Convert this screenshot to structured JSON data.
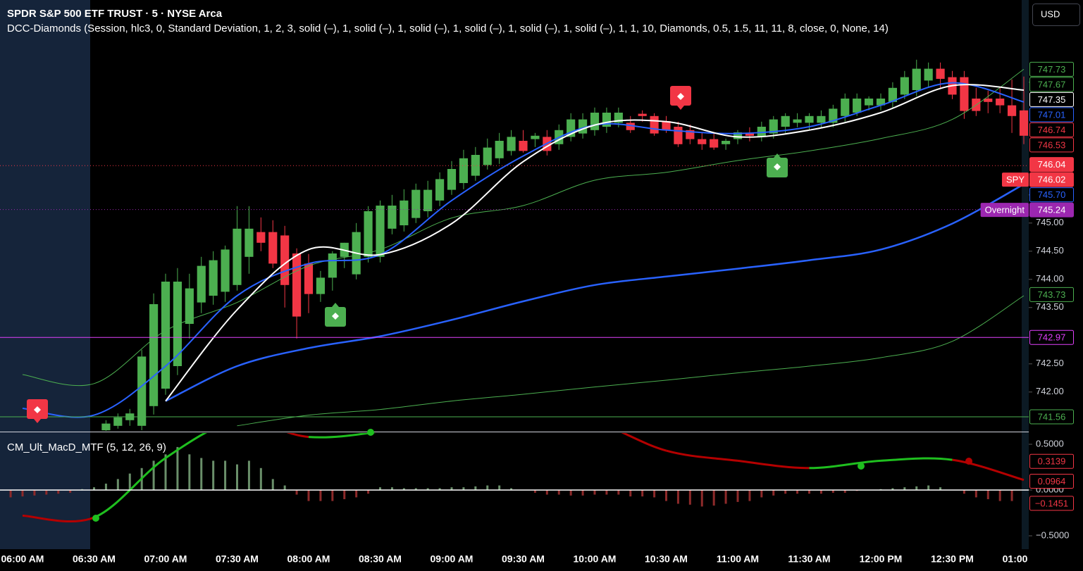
{
  "header": {
    "title": "SPDR S&P 500 ETF TRUST · 5 · NYSE Arca",
    "currency": "USD"
  },
  "chart_data": [
    {
      "type": "candlestick",
      "title": "DCC-Diamonds (Session, hlc3, 0, Standard Deviation, 1, 2, 3, solid (–), 1, solid (–), 1, solid (–), 1, solid (–), 1, solid (–), 1, solid (–), 1, 1, 10, Diamonds, 0.5, 1.5, 11, 11, 8, close, 0, None, 14)",
      "categories": [
        "06:00 AM",
        "06:30 AM",
        "07:00 AM",
        "07:30 AM",
        "08:00 AM",
        "08:30 AM",
        "09:00 AM",
        "09:30 AM",
        "10:00 AM",
        "10:30 AM",
        "11:00 AM",
        "11:30 AM",
        "12:00 PM",
        "12:30 PM",
        "01:00 PM"
      ],
      "open": [
        741.32,
        741.4,
        741.5,
        741.4,
        741.75,
        742.06,
        742.46,
        743.21,
        743.59,
        743.71,
        743.78,
        743.9,
        744.4,
        744.84,
        744.84,
        744.78,
        744.46,
        744.28,
        743.74,
        744.03,
        744.4,
        744.09,
        744.4,
        744.4,
        744.9,
        744.96,
        745.09,
        745.21,
        745.4,
        745.59,
        745.71,
        745.84,
        746.03,
        746.15,
        746.28,
        746.46,
        746.49,
        746.53,
        746.4,
        746.53,
        746.59,
        746.65,
        746.71,
        746.78,
        746.78,
        746.94,
        746.9,
        746.81,
        746.71,
        746.65,
        746.49,
        746.49,
        746.4,
        746.49,
        746.59,
        746.53,
        746.59,
        746.71,
        746.78,
        746.78,
        746.78,
        746.78,
        746.9,
        746.96,
        747.09,
        747.09,
        747.15,
        747.28,
        747.36,
        747.53,
        747.74,
        747.59,
        747.59,
        747.21,
        747.21,
        747.21,
        747.09,
        747.0
      ],
      "high": [
        741.5,
        741.62,
        741.7,
        742.75,
        743.75,
        744.1,
        744.2,
        744.1,
        744.4,
        744.5,
        744.6,
        745.3,
        745.3,
        745.1,
        745.05,
        744.95,
        744.55,
        744.45,
        744.15,
        744.5,
        744.65,
        745.0,
        745.3,
        745.4,
        745.5,
        745.6,
        745.7,
        745.75,
        745.9,
        746.1,
        746.3,
        746.35,
        746.5,
        746.6,
        746.65,
        746.65,
        746.6,
        746.65,
        746.75,
        746.95,
        746.95,
        747.05,
        747.05,
        747.05,
        746.9,
        747.0,
        746.95,
        746.9,
        746.8,
        746.75,
        746.6,
        746.6,
        746.5,
        746.65,
        746.7,
        746.8,
        746.9,
        746.95,
        746.95,
        746.95,
        747.0,
        747.1,
        747.3,
        747.3,
        747.25,
        747.3,
        747.5,
        747.7,
        747.9,
        747.85,
        747.85,
        747.7,
        747.7,
        747.4,
        747.35,
        747.4,
        747.55,
        747.6
      ],
      "low": [
        741.3,
        741.35,
        741.4,
        741.32,
        741.6,
        741.95,
        742.3,
        742.95,
        743.4,
        743.55,
        743.6,
        743.8,
        744.1,
        744.5,
        744.2,
        743.5,
        742.95,
        743.4,
        743.6,
        743.8,
        744.2,
        744.0,
        744.3,
        744.3,
        744.8,
        744.85,
        745.0,
        745.1,
        745.3,
        745.5,
        745.6,
        745.75,
        745.95,
        746.05,
        746.2,
        746.25,
        746.35,
        746.2,
        746.3,
        746.45,
        746.5,
        746.55,
        746.6,
        746.7,
        746.6,
        746.8,
        746.55,
        746.6,
        746.35,
        746.4,
        746.3,
        746.3,
        746.3,
        746.4,
        746.45,
        746.45,
        746.5,
        746.6,
        746.7,
        746.65,
        746.7,
        746.7,
        746.8,
        746.9,
        747.0,
        747.0,
        747.05,
        747.2,
        747.25,
        747.4,
        747.4,
        747.2,
        746.85,
        746.9,
        746.95,
        746.95,
        746.6,
        746.4
      ],
      "close": [
        741.44,
        741.55,
        741.62,
        742.63,
        743.56,
        743.96,
        743.96,
        743.84,
        744.24,
        744.34,
        744.53,
        744.9,
        744.9,
        744.65,
        744.28,
        743.9,
        743.34,
        743.74,
        744.03,
        744.46,
        744.65,
        744.84,
        745.21,
        745.31,
        745.31,
        745.4,
        745.59,
        745.59,
        745.78,
        745.96,
        746.15,
        746.21,
        746.34,
        746.46,
        746.53,
        746.28,
        746.55,
        746.28,
        746.65,
        746.84,
        746.84,
        746.96,
        746.96,
        746.96,
        746.65,
        746.9,
        746.59,
        746.65,
        746.4,
        746.49,
        746.4,
        746.34,
        746.46,
        746.61,
        746.55,
        746.71,
        746.84,
        746.9,
        746.84,
        746.9,
        746.9,
        747.03,
        747.21,
        747.21,
        747.21,
        747.21,
        747.4,
        747.59,
        747.74,
        747.74,
        747.56,
        747.28,
        746.99,
        746.99,
        747.15,
        747.09,
        746.9,
        746.55
      ],
      "up_color": "#4caf50",
      "down_color": "#f23645",
      "lines": [
        {
          "color": "#4caf50",
          "width": 1,
          "values": [
            742.31,
            742.15,
            743.09,
            743.59,
            744.24,
            744.53,
            745.09,
            745.31,
            745.76,
            745.9,
            746.11,
            746.28,
            746.5,
            746.84,
            747.73
          ]
        },
        {
          "color": "#4caf50",
          "width": 1,
          "values": [
            null,
            null,
            null,
            741.4,
            741.59,
            741.69,
            741.84,
            741.96,
            742.09,
            742.21,
            742.34,
            742.46,
            742.61,
            742.9,
            743.71
          ]
        },
        {
          "color": "#2962ff",
          "width": 2.5,
          "values": [
            null,
            null,
            741.84,
            742.46,
            742.78,
            742.99,
            743.28,
            743.61,
            743.9,
            744.05,
            744.19,
            744.34,
            744.53,
            744.99,
            745.69
          ]
        },
        {
          "color": "#2962ff",
          "width": 2,
          "values": [
            741.71,
            741.59,
            742.46,
            743.71,
            744.28,
            744.44,
            745.4,
            746.19,
            746.74,
            746.65,
            746.59,
            746.71,
            747.09,
            747.49,
            747.15
          ]
        },
        {
          "color": "#ffffff",
          "width": 2,
          "values": [
            null,
            null,
            741.84,
            743.46,
            744.53,
            744.44,
            744.99,
            746.09,
            746.74,
            746.8,
            746.53,
            746.65,
            746.96,
            747.44,
            747.36
          ]
        }
      ],
      "ylim": [
        741.31,
        748.96
      ],
      "yticks": [
        {
          "value": 742,
          "label": "742.00"
        },
        {
          "value": 742.5,
          "label": "742.50"
        },
        {
          "value": 743.5,
          "label": "743.50"
        },
        {
          "value": 744,
          "label": "744.00"
        },
        {
          "value": 744.5,
          "label": "744.50"
        },
        {
          "value": 745,
          "label": "745.00"
        },
        {
          "value": 745.5,
          "label": "745.50"
        },
        {
          "value": 747.5,
          "label": "747.50"
        }
      ],
      "price_labels": [
        {
          "value": 747.73,
          "color": "#4caf50",
          "style": "outline"
        },
        {
          "value": 747.67,
          "color": "#4caf50",
          "style": "outline"
        },
        {
          "value": 747.35,
          "color": "#ffffff",
          "style": "outline"
        },
        {
          "value": 747.01,
          "color": "#2962ff",
          "style": "outline"
        },
        {
          "value": 746.74,
          "color": "#f23645",
          "style": "outline"
        },
        {
          "value": 746.53,
          "color": "#f23645",
          "style": "outline"
        },
        {
          "value": 746.04,
          "color": "#f23645",
          "style": "fill"
        },
        {
          "value": 746.02,
          "color": "#f23645",
          "style": "fill",
          "tag": "SPY",
          "line": "dotted"
        },
        {
          "value": 745.7,
          "label": "745.70",
          "color": "#2962ff",
          "style": "outline"
        },
        {
          "value": 745.24,
          "color": "#9c27b0",
          "style": "fill",
          "tag": "Overnight",
          "line": "dotted"
        },
        {
          "value": 743.73,
          "color": "#4caf50",
          "style": "outline"
        },
        {
          "value": 742.97,
          "color": "#e040fb",
          "style": "outline",
          "line": "solid"
        },
        {
          "value": 741.56,
          "color": "#4caf50",
          "style": "outline",
          "line": "solid"
        }
      ]
    },
    {
      "type": "macd",
      "title": "CM_Ult_MacD_MTF (5, 12, 26, 9)",
      "histogram": [
        -0.08,
        -0.08,
        -0.07,
        -0.06,
        -0.05,
        -0.04,
        -0.03,
        0.01,
        0.03,
        0.07,
        0.12,
        0.18,
        0.24,
        0.32,
        0.39,
        0.47,
        0.39,
        0.35,
        0.32,
        0.32,
        0.28,
        0.32,
        0.24,
        0.12,
        0.05,
        -0.05,
        -0.12,
        -0.12,
        -0.12,
        -0.1,
        -0.08,
        -0.04,
        0.03,
        0.03,
        0.02,
        0.02,
        0.02,
        0.02,
        0.03,
        0.03,
        0.04,
        0.05,
        0.05,
        0.02,
        0,
        -0.03,
        -0.05,
        -0.05,
        -0.06,
        -0.06,
        -0.05,
        -0.05,
        -0.05,
        -0.07,
        -0.07,
        -0.08,
        -0.12,
        -0.15,
        -0.16,
        -0.18,
        -0.17,
        -0.15,
        -0.13,
        -0.12,
        -0.08,
        -0.06,
        -0.04,
        -0.04,
        -0.04,
        -0.04,
        -0.03,
        -0.03,
        -0.01,
        0,
        0.01,
        0.02,
        0.03,
        0.04,
        0.05,
        0.03,
        0,
        -0.04,
        -0.08,
        -0.1,
        -0.12,
        -0.12
      ],
      "hist_colors": {
        "positive": "#6a8f6a",
        "negative": "#8e2a2a"
      },
      "line": [
        -0.28,
        -0.3,
        0.35,
        0.75,
        0.58,
        0.64,
        0.8,
        0.9,
        0.75,
        0.43,
        0.32,
        0.24,
        0.32,
        0.33,
        0.11
      ],
      "line_colors": {
        "rising": "#1fbf1f",
        "falling": "#b40000"
      },
      "ylim": [
        -0.646,
        0.623
      ],
      "yticks": [
        {
          "value": 0.5,
          "label": "0.5000"
        },
        {
          "value": 0,
          "label": "0.0000"
        },
        {
          "value": -0.5,
          "label": "−0.5000"
        }
      ],
      "price_labels": [
        {
          "value": 0.3139,
          "color": "#f23645",
          "style": "outline"
        },
        {
          "value": 0.0964,
          "color": "#f23645",
          "style": "outline"
        },
        {
          "value": -0.1451,
          "label": "−0.1451",
          "color": "#f23645",
          "style": "outline"
        }
      ]
    }
  ]
}
